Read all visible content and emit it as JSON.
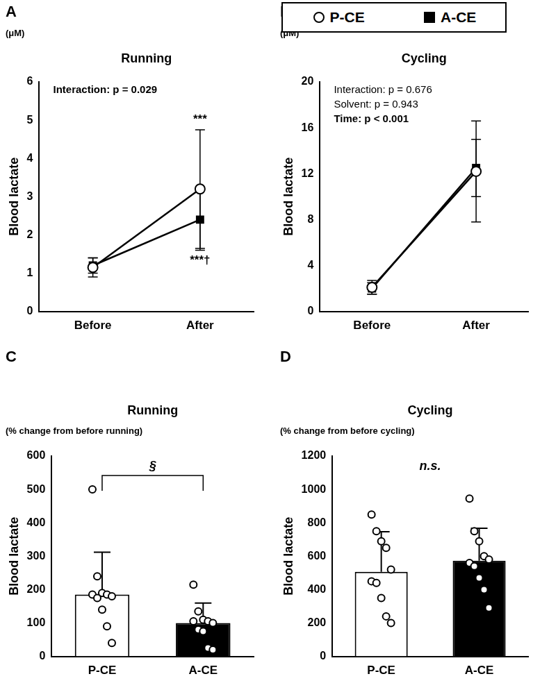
{
  "chart_data": [
    {
      "panel": "A",
      "type": "line",
      "title": "Running",
      "unit": "(μM)",
      "y_label": "Blood lactate",
      "categories": [
        "Before",
        "After"
      ],
      "series": [
        {
          "name": "P-CE",
          "color": "#ffffff",
          "marker": "circle",
          "values": [
            1.15,
            3.2
          ],
          "error": [
            0.25,
            1.55
          ],
          "point_labels": [
            null,
            "***"
          ]
        },
        {
          "name": "A-CE",
          "color": "#000000",
          "marker": "square",
          "values": [
            1.2,
            2.4
          ],
          "error": [
            0.2,
            0.8
          ],
          "point_labels": [
            null,
            "***†"
          ]
        }
      ],
      "ylim": [
        0,
        6
      ],
      "yticks": [
        0,
        1,
        2,
        3,
        4,
        5,
        6
      ],
      "grid": false,
      "stats": [
        {
          "text": "Interaction: p = 0.029",
          "significant": true
        }
      ]
    },
    {
      "panel": "B",
      "type": "line",
      "title": "Cycling",
      "unit": "(μM)",
      "y_label": "Blood lactate",
      "categories": [
        "Before",
        "After"
      ],
      "series": [
        {
          "name": "P-CE",
          "color": "#ffffff",
          "marker": "circle",
          "values": [
            2.1,
            12.2
          ],
          "error": [
            0.6,
            4.4
          ]
        },
        {
          "name": "A-CE",
          "color": "#000000",
          "marker": "square",
          "values": [
            2.0,
            12.5
          ],
          "error": [
            0.5,
            2.5
          ]
        }
      ],
      "ylim": [
        0,
        20
      ],
      "yticks": [
        0,
        4,
        8,
        12,
        16,
        20
      ],
      "grid": false,
      "stats": [
        {
          "text": "Interaction: p = 0.676",
          "significant": false
        },
        {
          "text": "Solvent: p = 0.943",
          "significant": false
        },
        {
          "text": "Time: p < 0.001",
          "significant": true
        }
      ]
    },
    {
      "panel": "C",
      "type": "bar",
      "title": "Running",
      "subtitle": "(% change from before running)",
      "y_label": "Blood lactate",
      "categories": [
        "P-CE",
        "A-CE"
      ],
      "values": [
        185,
        100
      ],
      "error": [
        127,
        60
      ],
      "colors": [
        "#ffffff",
        "#000000"
      ],
      "points": [
        [
          500,
          240,
          190,
          185,
          180,
          185,
          175,
          140,
          90,
          40
        ],
        [
          215,
          135,
          110,
          105,
          100,
          105,
          80,
          75,
          25,
          20
        ]
      ],
      "ylim": [
        0,
        600
      ],
      "yticks": [
        0,
        100,
        200,
        300,
        400,
        500,
        600
      ],
      "grid": false,
      "comparison": {
        "text": "§",
        "between": [
          "P-CE",
          "A-CE"
        ]
      }
    },
    {
      "panel": "D",
      "type": "bar",
      "title": "Cycling",
      "subtitle": "(% change from before cycling)",
      "y_label": "Blood lactate",
      "categories": [
        "P-CE",
        "A-CE"
      ],
      "values": [
        507,
        573
      ],
      "error": [
        240,
        195
      ],
      "colors": [
        "#ffffff",
        "#000000"
      ],
      "points": [
        [
          850,
          750,
          690,
          650,
          520,
          450,
          440,
          350,
          240,
          200
        ],
        [
          945,
          750,
          690,
          600,
          580,
          560,
          540,
          470,
          400,
          290
        ]
      ],
      "ylim": [
        0,
        1200
      ],
      "yticks": [
        0,
        200,
        400,
        600,
        800,
        1000,
        1200
      ],
      "grid": false,
      "comparison": {
        "text": "n.s."
      }
    }
  ]
}
